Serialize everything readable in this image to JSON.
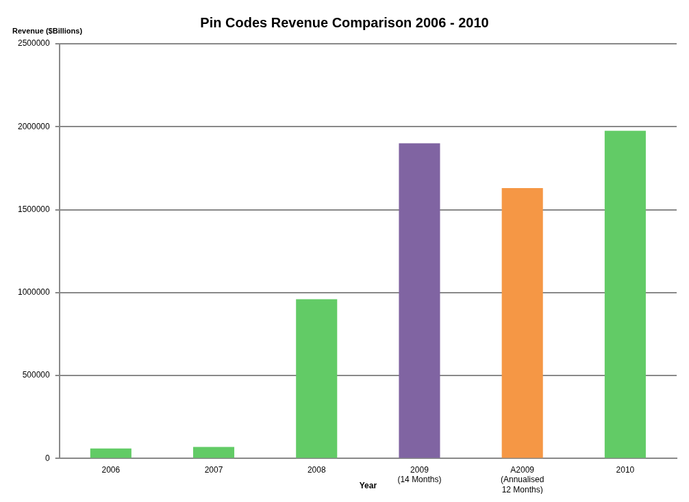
{
  "chart_data": {
    "type": "bar",
    "title": "Pin Codes Revenue Comparison 2006 - 2010",
    "xlabel": "Year",
    "ylabel": "Revenue ($Billions)",
    "categories": [
      "2006",
      "2007",
      "2008",
      "2009\n(14 Months)",
      "A2009\n(Annualised\n12 Months)",
      "2010"
    ],
    "values": [
      60000,
      70000,
      960000,
      1900000,
      1630000,
      1975000
    ],
    "colors": [
      "#62cb66",
      "#62cb66",
      "#62cb66",
      "#8064a2",
      "#f59745",
      "#62cb66"
    ],
    "ylim": [
      0,
      2500000
    ],
    "yticks": [
      0,
      500000,
      1000000,
      1500000,
      2000000,
      2500000
    ],
    "grid": "y",
    "legend": false
  }
}
